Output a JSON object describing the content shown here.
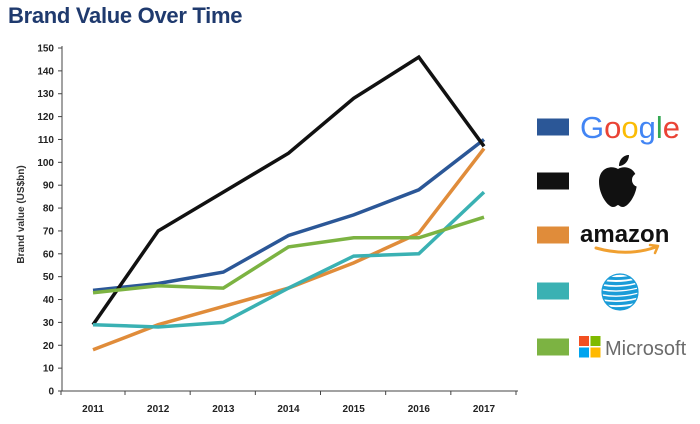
{
  "title": "Brand Value Over Time",
  "chart_data": {
    "type": "line",
    "title": "Brand Value Over Time",
    "xlabel": "",
    "ylabel": "Brand value (US$bn)",
    "ylim": [
      0,
      150
    ],
    "yticks": [
      "0",
      "10",
      "20",
      "30",
      "40",
      "50",
      "60",
      "70",
      "80",
      "90",
      "100",
      "110",
      "120",
      "130",
      "140",
      "150"
    ],
    "x": [
      "2011",
      "2012",
      "2013",
      "2014",
      "2015",
      "2016",
      "2017"
    ],
    "grid": false,
    "legend_position": "right",
    "series": [
      {
        "key": "google",
        "legend_label": "Google",
        "color": "#2b5797",
        "values": [
          44,
          47,
          52,
          68,
          77,
          88,
          110
        ]
      },
      {
        "key": "apple",
        "legend_label": "",
        "color": "#111111",
        "values": [
          29,
          70,
          87,
          104,
          128,
          146,
          107
        ]
      },
      {
        "key": "amazon",
        "legend_label": "amazon",
        "color": "#e08c3a",
        "values": [
          18,
          29,
          37,
          45,
          56,
          69,
          106
        ]
      },
      {
        "key": "att",
        "legend_label": "",
        "color": "#3ab1b3",
        "values": [
          29,
          28,
          30,
          45,
          59,
          60,
          87
        ]
      },
      {
        "key": "microsoft",
        "legend_label": "Microsoft",
        "color": "#7cb342",
        "values": [
          43,
          46,
          45,
          63,
          67,
          67,
          76
        ]
      }
    ]
  },
  "legend_logo_colors": {
    "google_letters": [
      "#4285f4",
      "#ea4335",
      "#fbbc05",
      "#4285f4",
      "#34a853",
      "#ea4335"
    ],
    "microsoft_squares": [
      "#f25022",
      "#7fba00",
      "#00a4ef",
      "#ffb900"
    ],
    "att_globe": "#1a9cd8",
    "amazon_smile": "#f0a030"
  }
}
